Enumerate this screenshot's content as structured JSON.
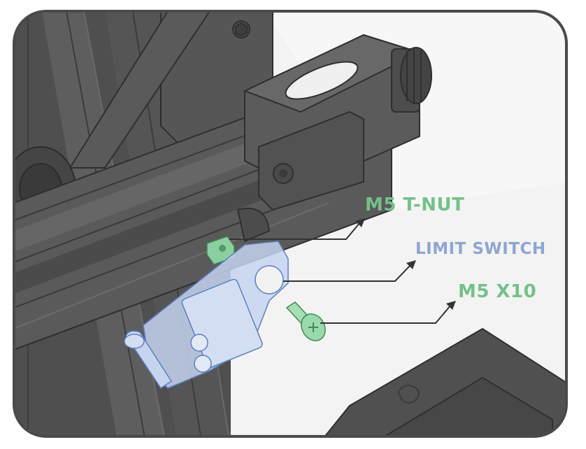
{
  "labels": {
    "t_nut": "M5 T-NUT",
    "limit_switch": "LIMIT SWITCH",
    "screw": "M5 X10"
  },
  "colors": {
    "t_nut": "#74c18a",
    "limit_switch": "#8fa6cf",
    "screw": "#74c18a",
    "frame_border": "#4a4a4a",
    "metal_dark": "#4e4e4e",
    "metal_mid": "#5c5c5c",
    "background": "#f2f2f2"
  }
}
